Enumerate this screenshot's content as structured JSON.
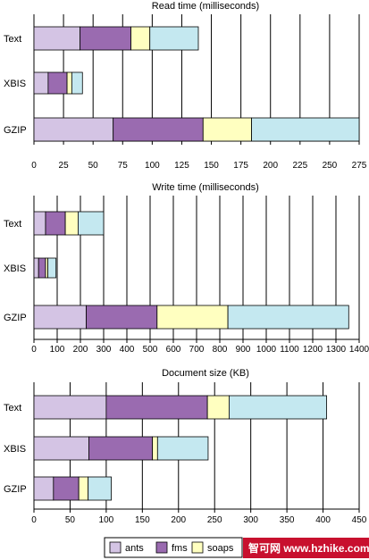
{
  "chart_data": [
    {
      "type": "bar",
      "stacked": true,
      "orientation": "horizontal",
      "title": "Read time (milliseconds)",
      "categories": [
        "Text",
        "XBIS",
        "GZIP"
      ],
      "series": [
        {
          "name": "ants",
          "values": [
            39,
            12,
            67
          ]
        },
        {
          "name": "fms",
          "values": [
            43,
            16,
            76
          ]
        },
        {
          "name": "soaps",
          "values": [
            16,
            4,
            41
          ]
        },
        {
          "name": "",
          "values": [
            41,
            9,
            91
          ]
        }
      ],
      "xlim": [
        0,
        275
      ],
      "xticks": [
        "0",
        "25",
        "50",
        "75",
        "100",
        "125",
        "150",
        "175",
        "200",
        "225",
        "250",
        "275"
      ],
      "grid": true
    },
    {
      "type": "bar",
      "stacked": true,
      "orientation": "horizontal",
      "title": "Write time (milliseconds)",
      "categories": [
        "Text",
        "XBIS",
        "GZIP"
      ],
      "series": [
        {
          "name": "ants",
          "values": [
            50,
            20,
            225
          ]
        },
        {
          "name": "fms",
          "values": [
            85,
            30,
            305
          ]
        },
        {
          "name": "soaps",
          "values": [
            55,
            10,
            305
          ]
        },
        {
          "name": "",
          "values": [
            110,
            35,
            520
          ]
        }
      ],
      "xlim": [
        0,
        1400
      ],
      "xticks": [
        "0",
        "100",
        "200",
        "300",
        "400",
        "500",
        "600",
        "700",
        "800",
        "900",
        "1000",
        "1100",
        "1200",
        "1300",
        "1400"
      ],
      "grid": true
    },
    {
      "type": "bar",
      "stacked": true,
      "orientation": "horizontal",
      "title": "Document size (KB)",
      "categories": [
        "Text",
        "XBIS",
        "GZIP"
      ],
      "series": [
        {
          "name": "ants",
          "values": [
            100,
            76,
            27
          ]
        },
        {
          "name": "fms",
          "values": [
            140,
            88,
            35
          ]
        },
        {
          "name": "soaps",
          "values": [
            30,
            7,
            13
          ]
        },
        {
          "name": "",
          "values": [
            135,
            70,
            32
          ]
        }
      ],
      "xlim": [
        0,
        450
      ],
      "xticks": [
        "0",
        "50",
        "100",
        "150",
        "200",
        "250",
        "300",
        "350",
        "400",
        "450"
      ],
      "grid": true
    }
  ],
  "colors": [
    "#d4c4e4",
    "#9a6bb0",
    "#ffffc0",
    "#c4e8f0"
  ],
  "legend": {
    "items": [
      {
        "name": "ants",
        "color": "#d4c4e4"
      },
      {
        "name": "fms",
        "color": "#9a6bb0"
      },
      {
        "name": "soaps",
        "color": "#ffffc0"
      }
    ],
    "position": "bottom-right"
  },
  "watermark": {
    "text": "智可网 www.hzhike.com",
    "color": "#c8102e"
  }
}
